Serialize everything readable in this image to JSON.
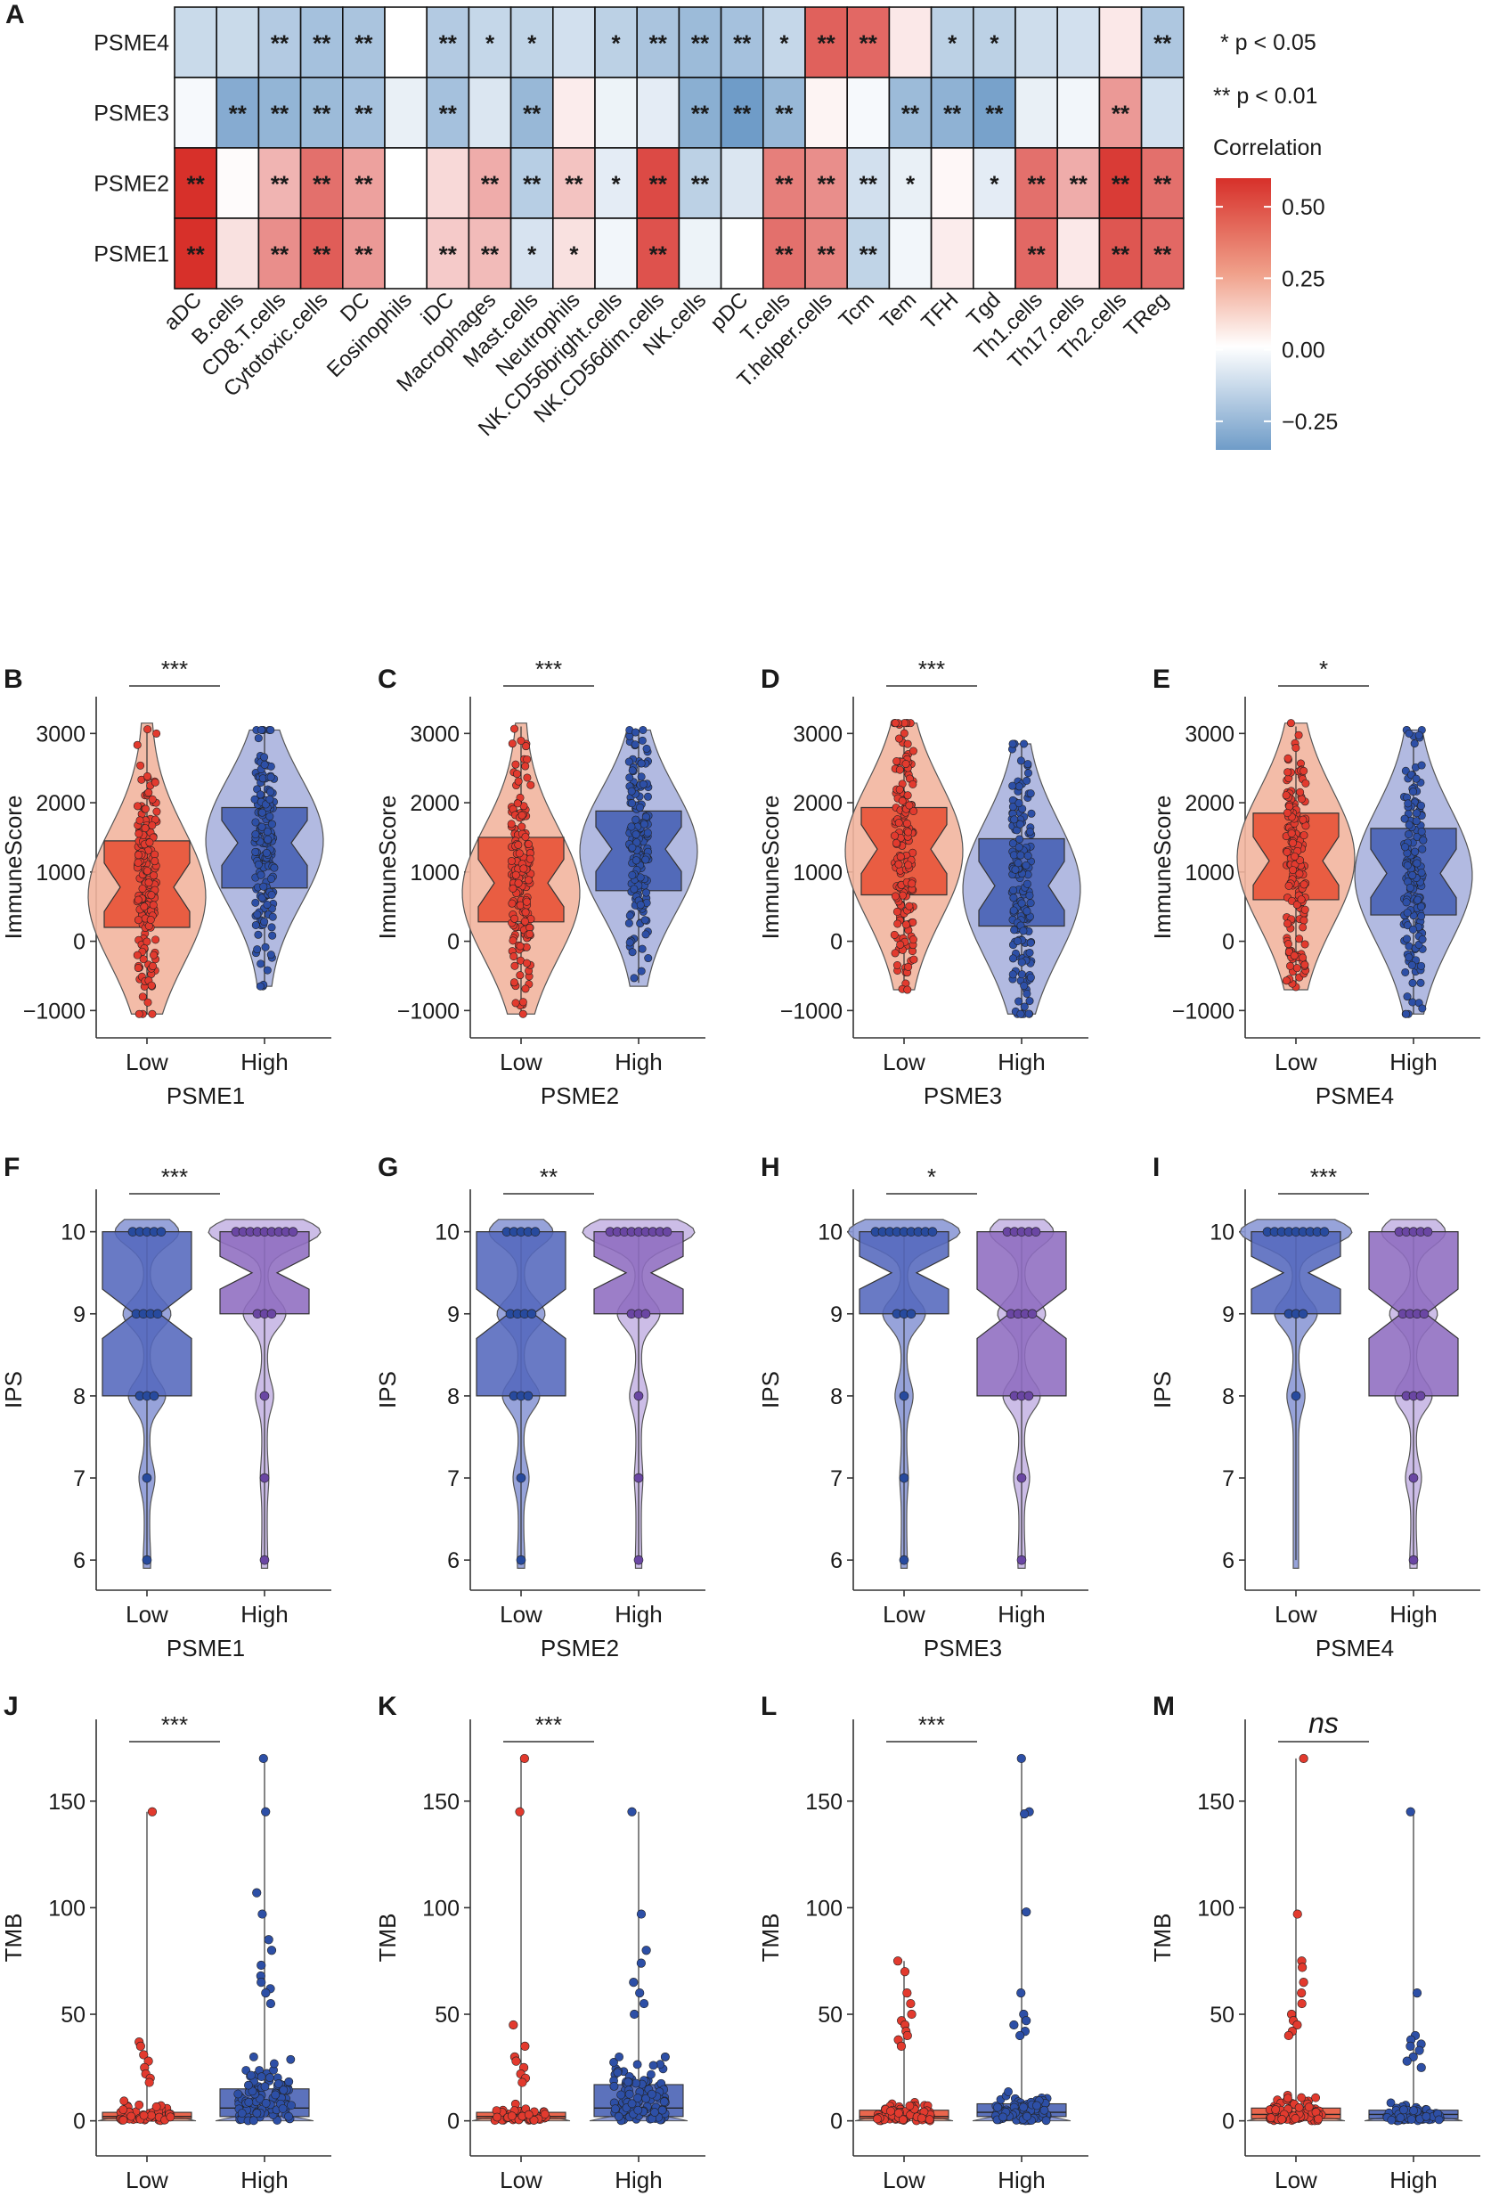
{
  "colors": {
    "neg": "#6f9cc8",
    "pos": "#d7302a",
    "mid": "#ffffff",
    "low_red": "#e8553a",
    "low_red_light": "#f2b59e",
    "red_dot": "#e23a2e",
    "high_blue": "#4a63b5",
    "high_blue_light": "#aab3de",
    "blue_dot": "#2d4fa6",
    "ips_blue": "#5468bd",
    "ips_blue_light": "#8c99d6",
    "ips_purple": "#8e6cc0",
    "ips_purple_light": "#c6b6e4",
    "dot_blue": "#274a9e",
    "dot_purple": "#6a46a3",
    "axis": "#333333"
  },
  "heatmap": {
    "panel_label": "A",
    "rows": [
      "PSME4",
      "PSME3",
      "PSME2",
      "PSME1"
    ],
    "cols": [
      "aDC",
      "B.cells",
      "CD8.T.cells",
      "Cytotoxic.cells",
      "DC",
      "Eosinophils",
      "iDC",
      "Macrophages",
      "Mast.cells",
      "Neutrophils",
      "NK.CD56bright.cells",
      "NK.CD56dim.cells",
      "NK.cells",
      "pDC",
      "T.cells",
      "T.helper.cells",
      "Tcm",
      "Tem",
      "TFH",
      "Tgd",
      "Th1.cells",
      "Th17.cells",
      "Th2.cells",
      "TReg"
    ],
    "values": [
      [
        -0.12,
        -0.12,
        -0.17,
        -0.2,
        -0.19,
        0.0,
        -0.17,
        -0.13,
        -0.14,
        -0.1,
        -0.15,
        -0.19,
        -0.22,
        -0.2,
        -0.13,
        0.42,
        0.4,
        0.06,
        -0.15,
        -0.15,
        -0.11,
        -0.1,
        0.06,
        -0.18
      ],
      [
        -0.02,
        -0.27,
        -0.24,
        -0.22,
        -0.2,
        -0.05,
        -0.2,
        -0.08,
        -0.23,
        0.05,
        -0.04,
        -0.06,
        -0.26,
        -0.32,
        -0.23,
        0.03,
        -0.02,
        -0.22,
        -0.25,
        -0.3,
        -0.05,
        -0.03,
        0.27,
        -0.1
      ],
      [
        0.55,
        0.01,
        0.2,
        0.38,
        0.25,
        0.0,
        0.1,
        0.22,
        -0.16,
        0.16,
        -0.06,
        0.48,
        -0.15,
        -0.08,
        0.34,
        0.3,
        -0.1,
        -0.05,
        0.02,
        -0.06,
        0.38,
        0.22,
        0.52,
        0.38
      ],
      [
        0.55,
        0.08,
        0.3,
        0.43,
        0.27,
        0.0,
        0.14,
        0.18,
        -0.09,
        0.08,
        -0.03,
        0.46,
        -0.04,
        0.0,
        0.38,
        0.33,
        -0.14,
        -0.03,
        0.05,
        0.0,
        0.4,
        0.06,
        0.45,
        0.4
      ]
    ],
    "stars": [
      [
        "",
        "",
        "**",
        "**",
        "**",
        "",
        "**",
        "*",
        "*",
        "",
        "*",
        "**",
        "**",
        "**",
        "*",
        "**",
        "**",
        "",
        "*",
        "*",
        "",
        "",
        "",
        "**"
      ],
      [
        "",
        "**",
        "**",
        "**",
        "**",
        "",
        "**",
        "",
        "**",
        "",
        "",
        "",
        "**",
        "**",
        "**",
        "",
        "",
        "**",
        "**",
        "**",
        "",
        "",
        "**",
        ""
      ],
      [
        "**",
        "",
        "**",
        "**",
        "**",
        "",
        "",
        "**",
        "**",
        "**",
        "*",
        "**",
        "**",
        "",
        "**",
        "**",
        "**",
        "*",
        "",
        "*",
        "**",
        "**",
        "**",
        "**"
      ],
      [
        "**",
        "",
        "**",
        "**",
        "**",
        "",
        "**",
        "**",
        "*",
        "*",
        "",
        "**",
        "",
        "",
        "**",
        "**",
        "**",
        "",
        "",
        "",
        "**",
        "",
        "**",
        "**"
      ]
    ],
    "legend": {
      "sig1": "* p < 0.05",
      "sig2": "** p < 0.01",
      "title": "Correlation",
      "ticks": [
        "0.50",
        "0.25",
        "0.00",
        "−0.25"
      ],
      "tick_values": [
        0.5,
        0.25,
        0.0,
        -0.25
      ],
      "range": [
        -0.35,
        0.6
      ]
    }
  },
  "chart_data": [
    {
      "type": "violin_box",
      "panel": "B",
      "gene": "PSME1",
      "ylabel": "ImmuneScore",
      "categories": [
        "Low",
        "High"
      ],
      "significance": "***",
      "yticks": [
        "−1000",
        "0",
        "1000",
        "2000",
        "3000"
      ],
      "ytick_values": [
        -1000,
        0,
        1000,
        2000,
        3000
      ],
      "ylim": [
        -1150,
        3300
      ],
      "groups": [
        {
          "name": "Low",
          "min": -1050,
          "q1": 200,
          "median": 780,
          "q3": 1450,
          "max": 3100,
          "range": [
            -1050,
            3150
          ],
          "mode": 650,
          "n": 160
        },
        {
          "name": "High",
          "min": -600,
          "q1": 770,
          "median": 1420,
          "q3": 1930,
          "max": 3050,
          "range": [
            -650,
            3050
          ],
          "mode": 1450,
          "n": 160
        }
      ]
    },
    {
      "type": "violin_box",
      "panel": "C",
      "gene": "PSME2",
      "ylabel": "ImmuneScore",
      "categories": [
        "Low",
        "High"
      ],
      "significance": "***",
      "yticks": [
        "−1000",
        "0",
        "1000",
        "2000",
        "3000"
      ],
      "ytick_values": [
        -1000,
        0,
        1000,
        2000,
        3000
      ],
      "ylim": [
        -1150,
        3300
      ],
      "groups": [
        {
          "name": "Low",
          "min": -1050,
          "q1": 280,
          "median": 840,
          "q3": 1500,
          "max": 3100,
          "range": [
            -1050,
            3150
          ],
          "mode": 700,
          "n": 160
        },
        {
          "name": "High",
          "min": -600,
          "q1": 730,
          "median": 1330,
          "q3": 1880,
          "max": 3050,
          "range": [
            -650,
            3050
          ],
          "mode": 1300,
          "n": 160
        }
      ]
    },
    {
      "type": "violin_box",
      "panel": "D",
      "gene": "PSME3",
      "ylabel": "ImmuneScore",
      "categories": [
        "Low",
        "High"
      ],
      "significance": "***",
      "yticks": [
        "−1000",
        "0",
        "1000",
        "2000",
        "3000"
      ],
      "ytick_values": [
        -1000,
        0,
        1000,
        2000,
        3000
      ],
      "ylim": [
        -1150,
        3300
      ],
      "groups": [
        {
          "name": "Low",
          "min": -700,
          "q1": 670,
          "median": 1330,
          "q3": 1930,
          "max": 3100,
          "range": [
            -700,
            3150
          ],
          "mode": 1300,
          "n": 160
        },
        {
          "name": "High",
          "min": -1050,
          "q1": 220,
          "median": 800,
          "q3": 1480,
          "max": 2850,
          "range": [
            -1050,
            2850
          ],
          "mode": 750,
          "n": 160
        }
      ]
    },
    {
      "type": "violin_box",
      "panel": "E",
      "gene": "PSME4",
      "ylabel": "ImmuneScore",
      "categories": [
        "Low",
        "High"
      ],
      "significance": "*",
      "yticks": [
        "−1000",
        "0",
        "1000",
        "2000",
        "3000"
      ],
      "ytick_values": [
        -1000,
        0,
        1000,
        2000,
        3000
      ],
      "ylim": [
        -1150,
        3300
      ],
      "groups": [
        {
          "name": "Low",
          "min": -700,
          "q1": 600,
          "median": 1160,
          "q3": 1850,
          "max": 3100,
          "range": [
            -700,
            3150
          ],
          "mode": 1200,
          "n": 160
        },
        {
          "name": "High",
          "min": -1050,
          "q1": 380,
          "median": 980,
          "q3": 1630,
          "max": 3000,
          "range": [
            -1050,
            3050
          ],
          "mode": 950,
          "n": 160
        }
      ]
    },
    {
      "type": "violin_box_discrete",
      "panel": "F",
      "gene": "PSME1",
      "ylabel": "IPS",
      "categories": [
        "Low",
        "High"
      ],
      "significance": "***",
      "yticks": [
        "6",
        "7",
        "8",
        "9",
        "10"
      ],
      "ytick_values": [
        6,
        7,
        8,
        9,
        10
      ],
      "ylim": [
        5.85,
        10.3
      ],
      "groups": [
        {
          "name": "Low",
          "q1": 8,
          "median": 9,
          "q3": 10,
          "notch": 0.3,
          "levels": {
            "10": 0.55,
            "9": 0.4,
            "8": 0.3,
            "7": 0.1,
            "6": 0.02
          }
        },
        {
          "name": "High",
          "q1": 9,
          "median": 9.5,
          "q3": 10,
          "notch": 0.2,
          "levels": {
            "10": 1.0,
            "9": 0.35,
            "8": 0.12,
            "7": 0.03,
            "6": 0.01
          }
        }
      ]
    },
    {
      "type": "violin_box_discrete",
      "panel": "G",
      "gene": "PSME2",
      "ylabel": "IPS",
      "categories": [
        "Low",
        "High"
      ],
      "significance": "**",
      "yticks": [
        "6",
        "7",
        "8",
        "9",
        "10"
      ],
      "ytick_values": [
        6,
        7,
        8,
        9,
        10
      ],
      "ylim": [
        5.85,
        10.3
      ],
      "groups": [
        {
          "name": "Low",
          "q1": 8,
          "median": 9,
          "q3": 10,
          "notch": 0.3,
          "levels": {
            "10": 0.55,
            "9": 0.4,
            "8": 0.3,
            "7": 0.1,
            "6": 0.02
          }
        },
        {
          "name": "High",
          "q1": 9,
          "median": 9.5,
          "q3": 10,
          "notch": 0.2,
          "levels": {
            "10": 1.0,
            "9": 0.35,
            "8": 0.12,
            "7": 0.03,
            "6": 0.01
          }
        }
      ]
    },
    {
      "type": "violin_box_discrete",
      "panel": "H",
      "gene": "PSME3",
      "ylabel": "IPS",
      "categories": [
        "Low",
        "High"
      ],
      "significance": "*",
      "yticks": [
        "6",
        "7",
        "8",
        "9",
        "10"
      ],
      "ytick_values": [
        6,
        7,
        8,
        9,
        10
      ],
      "ylim": [
        5.85,
        10.3
      ],
      "groups": [
        {
          "name": "Low",
          "q1": 9,
          "median": 9.5,
          "q3": 10,
          "notch": 0.2,
          "levels": {
            "10": 1.0,
            "9": 0.35,
            "8": 0.12,
            "7": 0.03,
            "6": 0.01
          }
        },
        {
          "name": "High",
          "q1": 8,
          "median": 9,
          "q3": 10,
          "notch": 0.3,
          "levels": {
            "10": 0.55,
            "9": 0.4,
            "8": 0.3,
            "7": 0.1,
            "6": 0.02
          }
        }
      ]
    },
    {
      "type": "violin_box_discrete",
      "panel": "I",
      "gene": "PSME4",
      "ylabel": "IPS",
      "categories": [
        "Low",
        "High"
      ],
      "significance": "***",
      "yticks": [
        "6",
        "7",
        "8",
        "9",
        "10"
      ],
      "ytick_values": [
        6,
        7,
        8,
        9,
        10
      ],
      "ylim": [
        5.85,
        10.3
      ],
      "groups": [
        {
          "name": "Low",
          "q1": 9,
          "median": 9.5,
          "q3": 10,
          "notch": 0.2,
          "levels": {
            "10": 1.0,
            "9": 0.35,
            "8": 0.12,
            "7": 0.0,
            "6": 0.0
          }
        },
        {
          "name": "High",
          "q1": 8,
          "median": 9,
          "q3": 10,
          "notch": 0.3,
          "levels": {
            "10": 0.55,
            "9": 0.4,
            "8": 0.3,
            "7": 0.1,
            "6": 0.02
          }
        }
      ]
    },
    {
      "type": "violin_box_tmb",
      "panel": "J",
      "gene": "PSME1",
      "ylabel": "TMB",
      "categories": [
        "Low",
        "High"
      ],
      "significance": "***",
      "italic": false,
      "yticks": [
        "0",
        "50",
        "100",
        "150"
      ],
      "ytick_values": [
        0,
        50,
        100,
        150
      ],
      "ylim": [
        -6,
        180
      ],
      "groups": [
        {
          "name": "Low",
          "q1": 1,
          "median": 2,
          "q3": 4,
          "max": 145,
          "outliers": [
            145,
            37,
            35,
            31,
            28,
            25,
            22,
            20,
            18
          ],
          "n": 60
        },
        {
          "name": "High",
          "q1": 2,
          "median": 6,
          "q3": 15,
          "max": 170,
          "outliers": [
            170,
            145,
            107,
            97,
            85,
            80,
            73,
            68,
            65,
            62,
            60,
            55
          ],
          "n": 110
        }
      ]
    },
    {
      "type": "violin_box_tmb",
      "panel": "K",
      "gene": "PSME2",
      "ylabel": "TMB",
      "categories": [
        "Low",
        "High"
      ],
      "significance": "***",
      "italic": false,
      "yticks": [
        "0",
        "50",
        "100",
        "150"
      ],
      "ytick_values": [
        0,
        50,
        100,
        150
      ],
      "ylim": [
        -6,
        180
      ],
      "groups": [
        {
          "name": "Low",
          "q1": 1,
          "median": 2,
          "q3": 4,
          "max": 170,
          "outliers": [
            170,
            145,
            45,
            35,
            30,
            28,
            25,
            22,
            20,
            18
          ],
          "n": 60
        },
        {
          "name": "High",
          "q1": 2,
          "median": 6,
          "q3": 17,
          "max": 145,
          "outliers": [
            145,
            97,
            80,
            74,
            65,
            60,
            55,
            50
          ],
          "n": 110
        }
      ]
    },
    {
      "type": "violin_box_tmb",
      "panel": "L",
      "gene": "PSME3",
      "ylabel": "TMB",
      "categories": [
        "Low",
        "High"
      ],
      "significance": "***",
      "italic": false,
      "yticks": [
        "0",
        "50",
        "100",
        "150"
      ],
      "ytick_values": [
        0,
        50,
        100,
        150
      ],
      "ylim": [
        -6,
        180
      ],
      "groups": [
        {
          "name": "Low",
          "q1": 1,
          "median": 2,
          "q3": 5,
          "max": 75,
          "outliers": [
            75,
            70,
            60,
            55,
            50,
            47,
            45,
            42,
            40,
            38,
            35
          ],
          "n": 90
        },
        {
          "name": "High",
          "q1": 2,
          "median": 4,
          "q3": 8,
          "max": 170,
          "outliers": [
            170,
            145,
            144,
            98,
            60,
            50,
            47,
            45,
            42,
            40
          ],
          "n": 90
        }
      ]
    },
    {
      "type": "violin_box_tmb",
      "panel": "M",
      "gene": "PSME4",
      "ylabel": "TMB",
      "categories": [
        "Low",
        "High"
      ],
      "significance": "ns",
      "italic": true,
      "yticks": [
        "0",
        "50",
        "100",
        "150"
      ],
      "ytick_values": [
        0,
        50,
        100,
        150
      ],
      "ylim": [
        -6,
        180
      ],
      "groups": [
        {
          "name": "Low",
          "q1": 1,
          "median": 3,
          "q3": 6,
          "max": 170,
          "outliers": [
            170,
            97,
            75,
            72,
            65,
            60,
            55,
            50,
            47,
            45,
            42,
            40
          ],
          "n": 90
        },
        {
          "name": "High",
          "q1": 1,
          "median": 3,
          "q3": 5,
          "max": 145,
          "outliers": [
            145,
            60,
            40,
            38,
            36,
            35,
            33,
            30,
            28,
            25
          ],
          "n": 80
        }
      ]
    }
  ]
}
